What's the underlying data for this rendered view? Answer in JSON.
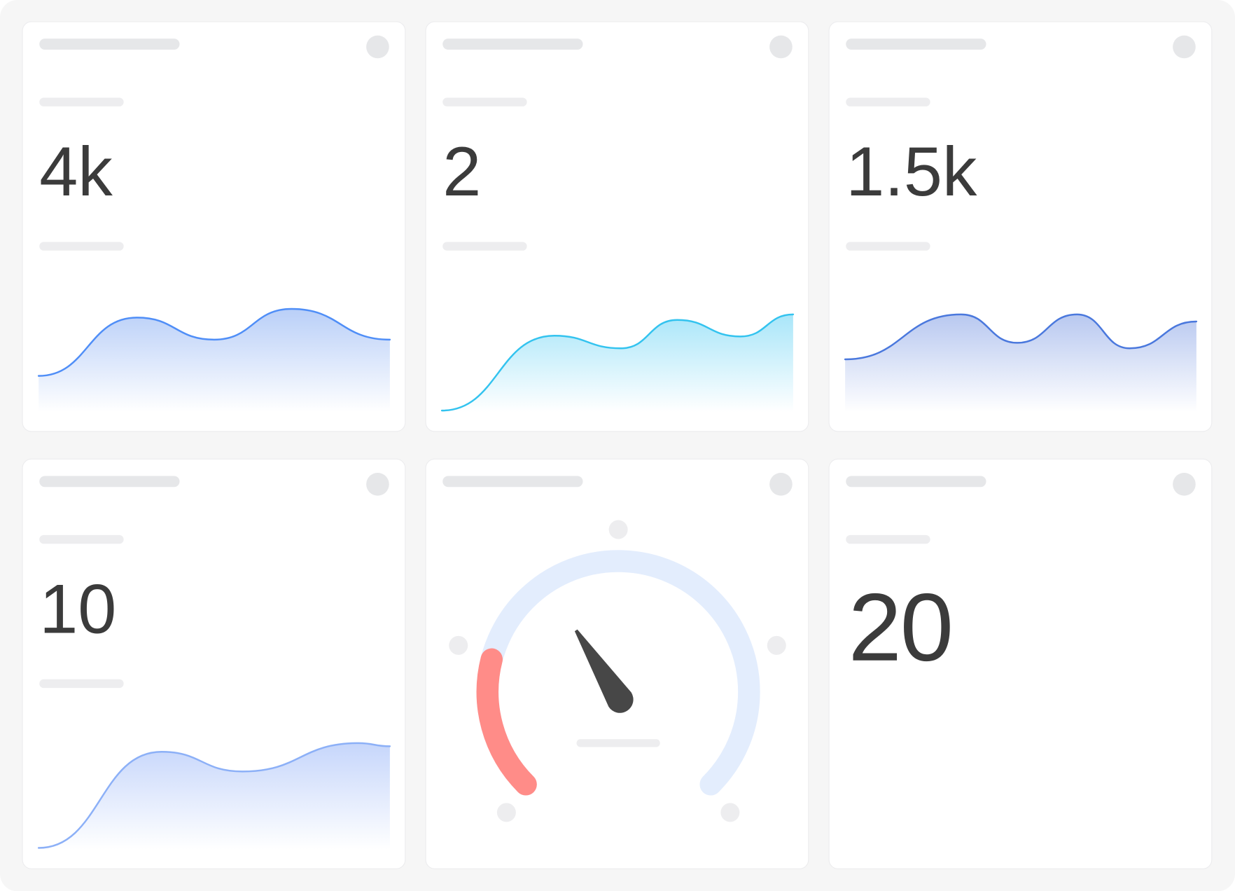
{
  "cards": [
    {
      "value": "4k",
      "chart": {
        "type": "area",
        "color": "#4f8ef7",
        "fill": "#b9cff8",
        "points": [
          [
            0,
            44
          ],
          [
            0.28,
            118
          ],
          [
            0.5,
            90
          ],
          [
            0.72,
            129
          ],
          [
            1,
            90
          ]
        ]
      }
    },
    {
      "value": "2",
      "chart": {
        "type": "area",
        "color": "#33c3ef",
        "fill": "#a9e6f9",
        "points": [
          [
            0,
            0
          ],
          [
            0.32,
            95
          ],
          [
            0.51,
            79
          ],
          [
            0.67,
            115
          ],
          [
            0.85,
            94
          ],
          [
            1,
            122
          ]
        ]
      }
    },
    {
      "value": "1.5k",
      "chart": {
        "type": "area",
        "color": "#4a78dd",
        "fill": "#b8c8f0",
        "points": [
          [
            0,
            65
          ],
          [
            0.33,
            122
          ],
          [
            0.49,
            86
          ],
          [
            0.66,
            122
          ],
          [
            0.81,
            79
          ],
          [
            1,
            113
          ]
        ]
      }
    },
    {
      "value": "10",
      "chart": {
        "type": "area",
        "color": "#8cb0f7",
        "fill": "#c6d6fb",
        "points": [
          [
            0,
            0
          ],
          [
            0.35,
            122
          ],
          [
            0.58,
            97
          ],
          [
            0.91,
            133
          ],
          [
            1,
            129
          ]
        ]
      }
    },
    {
      "gauge": {
        "value_fraction": 0.38,
        "alert_fraction": 0.22,
        "track_color": "#e3edfd",
        "alert_color": "#ff8c88",
        "needle_color": "#474747"
      }
    },
    {
      "value": "20"
    }
  ]
}
